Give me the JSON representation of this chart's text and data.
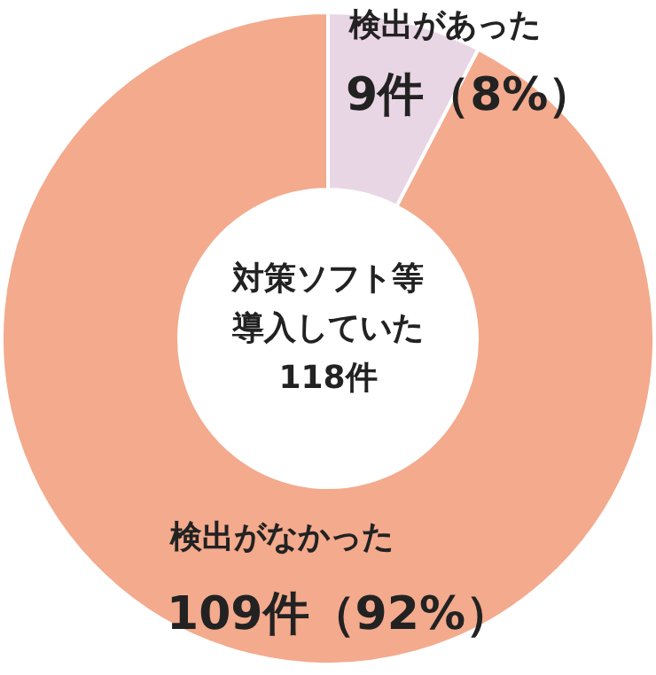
{
  "chart_data": {
    "type": "donut",
    "title": "対策ソフト等導入していた118件",
    "categories": [
      "検出があった",
      "検出がなかった"
    ],
    "values": [
      9,
      109
    ],
    "colors": [
      "#e9d6e4",
      "#f3aa8d"
    ],
    "value_labels": [
      "9件（8%）",
      "109件（92%）"
    ]
  }
}
